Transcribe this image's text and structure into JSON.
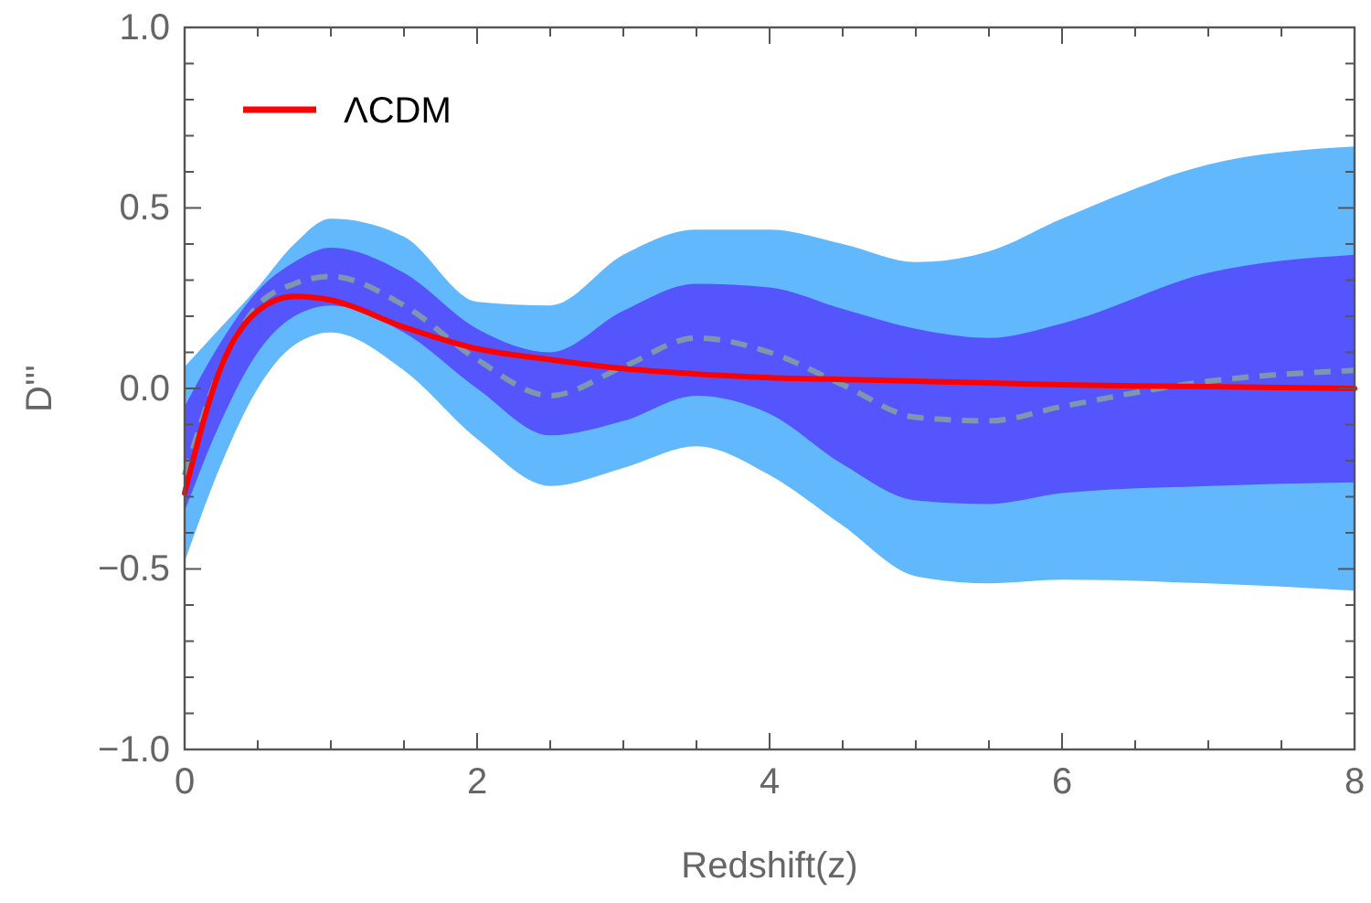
{
  "chart_data": {
    "type": "line",
    "xlabel": "Redshift(z)",
    "ylabel": "D'''",
    "x": [
      0,
      0.25,
      0.5,
      0.75,
      1,
      1.5,
      2,
      2.5,
      3,
      3.5,
      4,
      4.5,
      5,
      5.5,
      6,
      7,
      8
    ],
    "series": [
      {
        "color": "#62b8fd",
        "values": [
          null,
          null,
          null,
          null,
          null,
          null,
          null,
          null,
          null,
          null,
          null,
          null,
          null,
          null,
          null,
          null,
          null
        ],
        "lower": [
          -0.48,
          -0.21,
          0.0,
          0.12,
          0.155,
          0.05,
          -0.14,
          -0.27,
          -0.22,
          -0.16,
          -0.24,
          -0.38,
          -0.52,
          -0.54,
          -0.53,
          -0.54,
          -0.56
        ],
        "upper": [
          0.06,
          0.17,
          0.28,
          0.4,
          0.47,
          0.42,
          0.24,
          0.23,
          0.37,
          0.44,
          0.44,
          0.4,
          0.35,
          0.38,
          0.47,
          0.62,
          0.67
        ]
      },
      {
        "color": "#7d97ac",
        "line_style": "dashed",
        "values": [
          -0.24,
          0.06,
          0.23,
          0.29,
          0.31,
          0.23,
          0.08,
          -0.02,
          0.06,
          0.14,
          0.1,
          0.01,
          -0.08,
          -0.09,
          -0.05,
          0.02,
          0.05
        ],
        "lower": [
          -0.34,
          -0.09,
          0.1,
          0.2,
          0.23,
          0.155,
          0.0,
          -0.13,
          -0.09,
          -0.02,
          -0.07,
          -0.21,
          -0.31,
          -0.32,
          -0.29,
          -0.27,
          -0.26
        ],
        "upper": [
          -0.05,
          0.13,
          0.27,
          0.35,
          0.39,
          0.32,
          0.165,
          0.1,
          0.215,
          0.29,
          0.28,
          0.22,
          0.165,
          0.14,
          0.18,
          0.32,
          0.37
        ]
      },
      {
        "name": "ΛCDM",
        "color": "#ff0000",
        "line_style": "solid",
        "values": [
          -0.29,
          0.06,
          0.215,
          0.255,
          0.245,
          0.17,
          0.11,
          0.08,
          0.055,
          0.04,
          0.03,
          0.025,
          0.02,
          0.015,
          0.01,
          0.005,
          0.0
        ]
      }
    ],
    "xlim": [
      0,
      8
    ],
    "xticks": [
      0,
      {
        "value": 0.5,
        "label": null
      },
      {
        "value": 1,
        "label": null
      },
      {
        "value": 1.5,
        "label": null
      },
      2,
      {
        "value": 2.5,
        "label": null
      },
      {
        "value": 3,
        "label": null
      },
      {
        "value": 3.5,
        "label": null
      },
      4,
      {
        "value": 4.5,
        "label": null
      },
      {
        "value": 5,
        "label": null
      },
      {
        "value": 5.5,
        "label": null
      },
      6,
      {
        "value": 6.5,
        "label": null
      },
      {
        "value": 7,
        "label": null
      },
      {
        "value": 7.5,
        "label": null
      },
      8
    ],
    "ylim": [
      -1,
      1
    ],
    "yticks": [
      {
        "value": -1,
        "label": "−1.0"
      },
      {
        "value": -0.9,
        "label": null
      },
      {
        "value": -0.8,
        "label": null
      },
      {
        "value": -0.7,
        "label": null
      },
      {
        "value": -0.6,
        "label": null
      },
      {
        "value": -0.5,
        "label": "−0.5"
      },
      {
        "value": -0.4,
        "label": null
      },
      {
        "value": -0.3,
        "label": null
      },
      {
        "value": -0.2,
        "label": null
      },
      {
        "value": -0.1,
        "label": null
      },
      {
        "value": 0,
        "label": "0.0"
      },
      {
        "value": 0.1,
        "label": null
      },
      {
        "value": 0.2,
        "label": null
      },
      {
        "value": 0.3,
        "label": null
      },
      {
        "value": 0.4,
        "label": null
      },
      {
        "value": 0.5,
        "label": "0.5"
      },
      {
        "value": 0.6,
        "label": null
      },
      {
        "value": 0.7,
        "label": null
      },
      {
        "value": 0.8,
        "label": null
      },
      {
        "value": 0.9,
        "label": null
      },
      {
        "value": 1,
        "label": "1.0"
      }
    ],
    "grid": false,
    "legend": "top left"
  }
}
